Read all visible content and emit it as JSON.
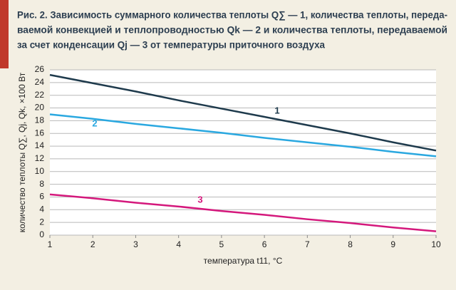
{
  "chart_data": {
    "type": "line",
    "title_lines": [
      "Рис. 2. Зависимость суммарного количества теплоты Q∑ — 1, количества теплоты, переда-",
      "ваемой конвекцией и теплопроводностью Qk — 2 и количества теплоты, передаваемой",
      "за счет конденсации Qj — 3 от температуры приточного воздуха"
    ],
    "x_label": "температура t11, °C",
    "y_label": "количество теплоты Q∑, Qj, Qk, ×100 Вт",
    "x": [
      1,
      2,
      3,
      4,
      5,
      6,
      7,
      8,
      9,
      10
    ],
    "series": [
      {
        "name": "1",
        "color": "#1e3a4c",
        "values": [
          25.2,
          23.9,
          22.6,
          21.2,
          19.9,
          18.6,
          17.3,
          16.0,
          14.6,
          13.3
        ]
      },
      {
        "name": "2",
        "color": "#2aa8e0",
        "values": [
          19.0,
          18.3,
          17.5,
          16.8,
          16.1,
          15.3,
          14.6,
          13.9,
          13.1,
          12.4
        ]
      },
      {
        "name": "3",
        "color": "#d4187c",
        "values": [
          6.4,
          5.8,
          5.1,
          4.5,
          3.8,
          3.2,
          2.5,
          1.9,
          1.2,
          0.6
        ]
      }
    ],
    "xlim": [
      1,
      10
    ],
    "xticks": [
      1,
      2,
      3,
      4,
      5,
      6,
      7,
      8,
      9,
      10
    ],
    "ylim": [
      0,
      26
    ],
    "yticks": [
      0,
      2,
      4,
      6,
      8,
      10,
      12,
      14,
      16,
      18,
      20,
      22,
      24,
      26
    ],
    "grid": true
  }
}
